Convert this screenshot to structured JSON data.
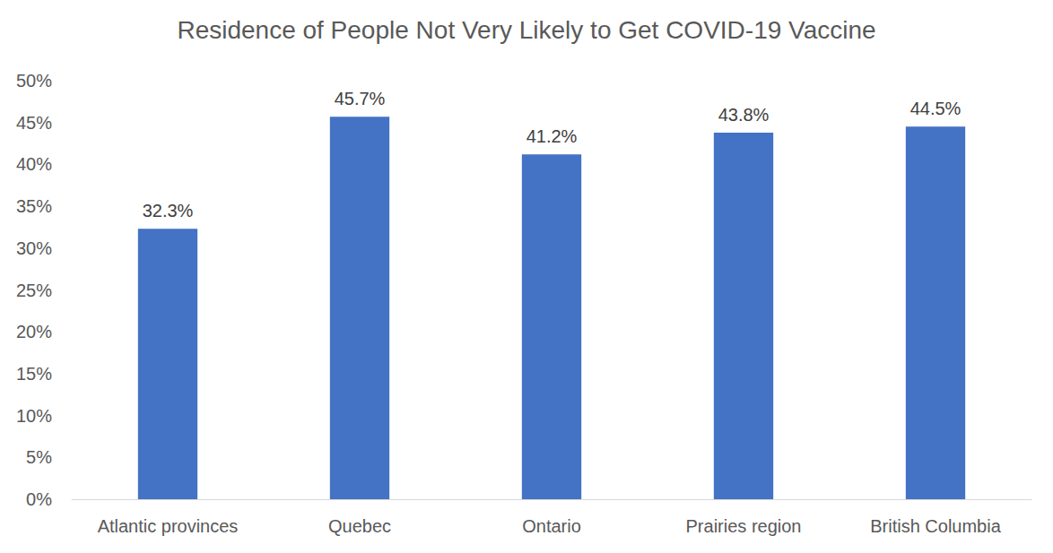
{
  "chart_data": {
    "type": "bar",
    "title": "Residence of People Not Very Likely to Get COVID-19 Vaccine",
    "categories": [
      "Atlantic provinces",
      "Quebec",
      "Ontario",
      "Prairies region",
      "British Columbia"
    ],
    "values": [
      32.3,
      45.7,
      41.2,
      43.8,
      44.5
    ],
    "value_labels": [
      "32.3%",
      "45.7%",
      "41.2%",
      "43.8%",
      "44.5%"
    ],
    "color": "#4472c4",
    "ylim": [
      0,
      50
    ],
    "yticks": [
      {
        "value": 0,
        "label": "0%"
      },
      {
        "value": 5,
        "label": "5%"
      },
      {
        "value": 10,
        "label": "10%"
      },
      {
        "value": 15,
        "label": "15%"
      },
      {
        "value": 20,
        "label": "20%"
      },
      {
        "value": 25,
        "label": "25%"
      },
      {
        "value": 30,
        "label": "30%"
      },
      {
        "value": 35,
        "label": "35%"
      },
      {
        "value": 40,
        "label": "40%"
      },
      {
        "value": 45,
        "label": "45%"
      },
      {
        "value": 50,
        "label": "50%"
      }
    ],
    "grid": false,
    "data_labels": true
  }
}
